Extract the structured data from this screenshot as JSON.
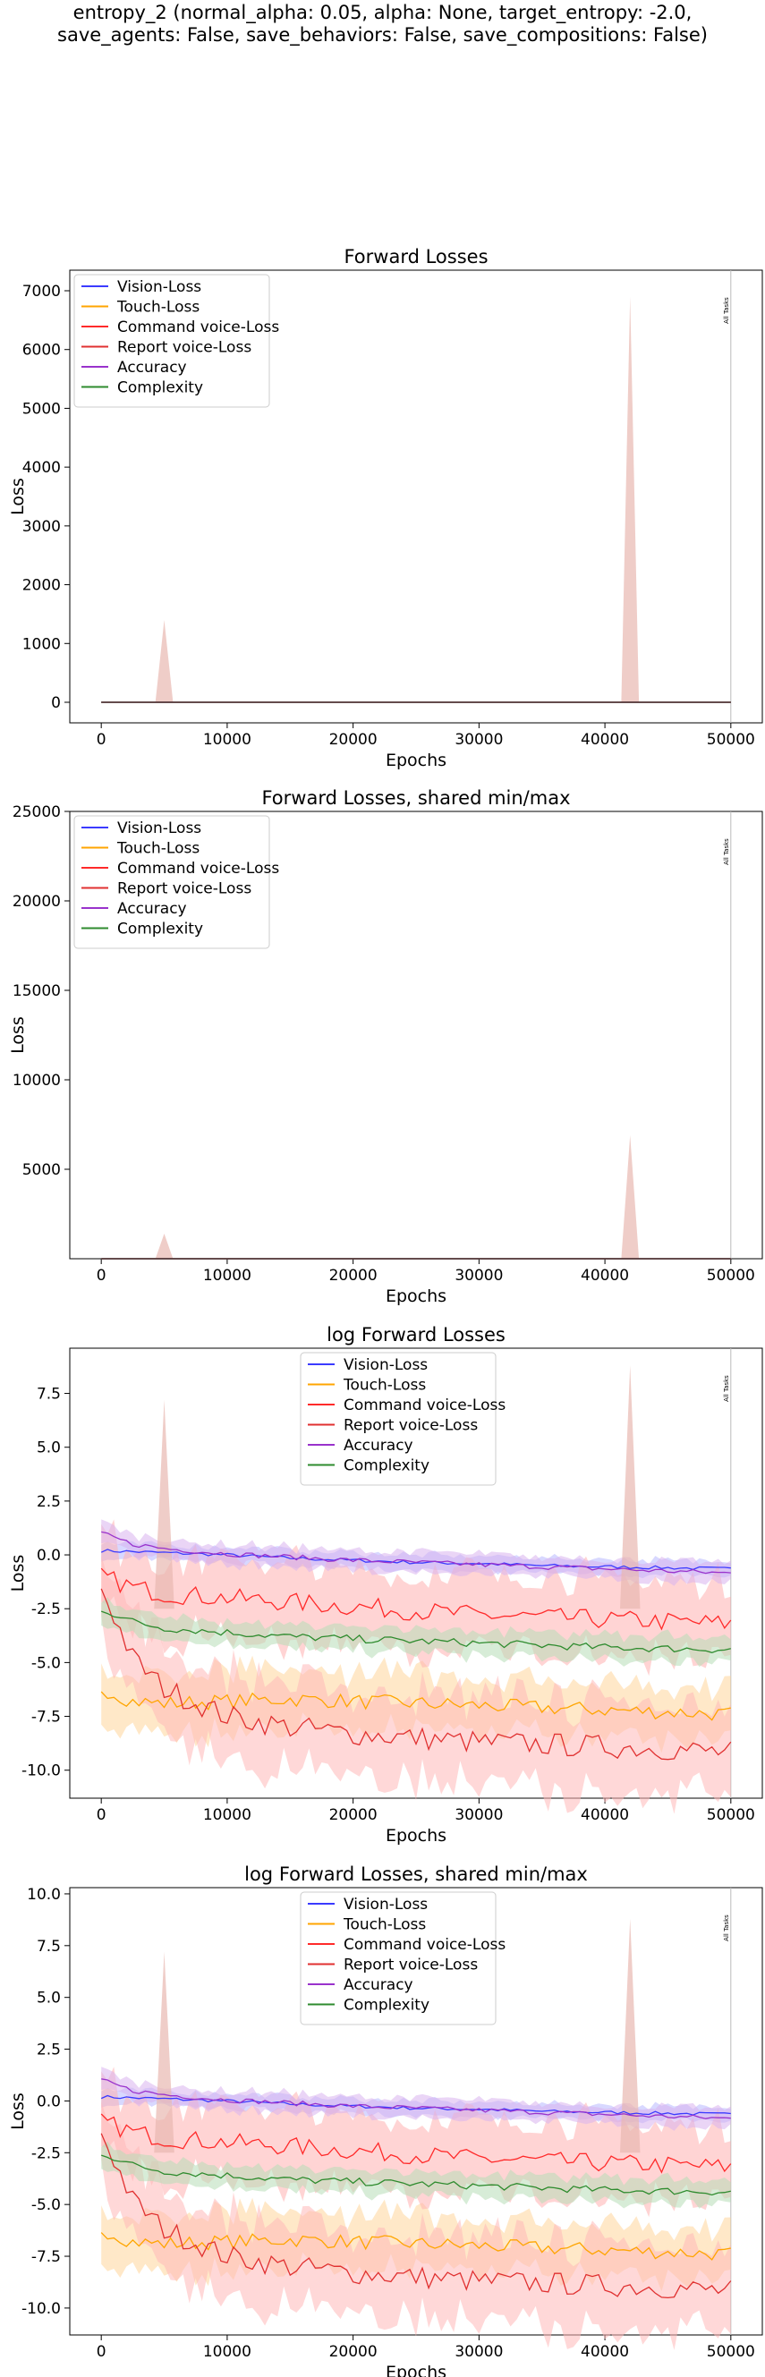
{
  "suptitle_line1": "entropy_2 (normal_alpha: 0.05, alpha: None, target_entropy: -2.0,",
  "suptitle_line2": "save_agents: False, save_behaviors: False, save_compositions: False)",
  "colors": {
    "Vision-Loss": "#3b3bff",
    "Touch-Loss": "#ffa500",
    "Command voice-Loss": "#ff2a2a",
    "Report voice-Loss": "#e03030",
    "Accuracy": "#9932cc",
    "Complexity": "#2e8b2e"
  },
  "chart_data": [
    {
      "type": "line",
      "title": "Forward Losses",
      "xlabel": "Epochs",
      "ylabel": "Loss",
      "xlim": [
        -2500,
        52500
      ],
      "ylim": [
        -350,
        7350
      ],
      "xticks": [
        "0",
        "10000",
        "20000",
        "30000",
        "40000",
        "50000"
      ],
      "yticks": [
        "0",
        "1000",
        "2000",
        "3000",
        "4000",
        "5000",
        "6000",
        "7000"
      ],
      "legend_position": "upper-left",
      "annotation": "All Tasks",
      "series": [
        {
          "name": "Vision-Loss",
          "values_summary": "~0 across epochs"
        },
        {
          "name": "Touch-Loss",
          "values_summary": "~0 across epochs"
        },
        {
          "name": "Command voice-Loss",
          "values_summary": "~0 across epochs"
        },
        {
          "name": "Report voice-Loss",
          "values_summary": "~0, band spikes to ~1400 at 5000 and ~6900 at 42000"
        },
        {
          "name": "Accuracy",
          "values_summary": "~0 across epochs"
        },
        {
          "name": "Complexity",
          "values_summary": "~0 across epochs"
        }
      ]
    },
    {
      "type": "line",
      "title": "Forward Losses, shared min/max",
      "xlabel": "Epochs",
      "ylabel": "Loss",
      "xlim": [
        -2500,
        52500
      ],
      "ylim": [
        0,
        25000
      ],
      "xticks": [
        "0",
        "10000",
        "20000",
        "30000",
        "40000",
        "50000"
      ],
      "yticks": [
        "5000",
        "10000",
        "15000",
        "20000",
        "25000"
      ],
      "legend_position": "upper-left",
      "annotation": "All Tasks"
    },
    {
      "type": "line",
      "title": "log Forward Losses",
      "xlabel": "Epochs",
      "ylabel": "Loss",
      "xlim": [
        -2500,
        52500
      ],
      "ylim": [
        -11.3,
        9.6
      ],
      "xticks": [
        "0",
        "10000",
        "20000",
        "30000",
        "40000",
        "50000"
      ],
      "yticks": [
        "-10.0",
        "-7.5",
        "-5.0",
        "-2.5",
        "0.0",
        "2.5",
        "5.0",
        "7.5"
      ],
      "legend_position": "upper-center",
      "annotation": "All Tasks",
      "x": [
        0,
        2500,
        5000,
        10000,
        15000,
        20000,
        25000,
        30000,
        35000,
        40000,
        45000,
        50000
      ],
      "series": [
        {
          "name": "Vision-Loss",
          "values": [
            0.2,
            0.15,
            0.1,
            0.0,
            -0.15,
            -0.25,
            -0.35,
            -0.4,
            -0.5,
            -0.55,
            -0.6,
            -0.65
          ]
        },
        {
          "name": "Touch-Loss",
          "values": [
            -6.2,
            -6.8,
            -6.9,
            -6.8,
            -6.7,
            -6.8,
            -6.9,
            -7.0,
            -7.1,
            -7.2,
            -7.3,
            -7.4
          ]
        },
        {
          "name": "Command voice-Loss",
          "values": [
            -1.0,
            -1.5,
            -1.8,
            -2.0,
            -2.2,
            -2.4,
            -2.6,
            -2.8,
            -2.9,
            -3.0,
            -3.1,
            -3.2
          ]
        },
        {
          "name": "Report voice-Loss",
          "values": [
            -1.5,
            -4.8,
            -6.2,
            -7.5,
            -8.0,
            -8.3,
            -8.5,
            -8.7,
            -8.8,
            -8.9,
            -9.0,
            -9.2
          ]
        },
        {
          "name": "Accuracy",
          "values": [
            1.0,
            0.5,
            0.3,
            0.05,
            -0.1,
            -0.25,
            -0.35,
            -0.45,
            -0.55,
            -0.65,
            -0.75,
            -0.85
          ]
        },
        {
          "name": "Complexity",
          "values": [
            -2.5,
            -3.1,
            -3.4,
            -3.6,
            -3.8,
            -3.9,
            -4.0,
            -4.1,
            -4.2,
            -4.3,
            -4.35,
            -4.4
          ]
        }
      ]
    },
    {
      "type": "line",
      "title": "log Forward Losses, shared min/max",
      "xlabel": "Epochs",
      "ylabel": "Loss",
      "xlim": [
        -2500,
        52500
      ],
      "ylim": [
        -11.3,
        10.3
      ],
      "xticks": [
        "0",
        "10000",
        "20000",
        "30000",
        "40000",
        "50000"
      ],
      "yticks": [
        "-10.0",
        "-7.5",
        "-5.0",
        "-2.5",
        "0.0",
        "2.5",
        "5.0",
        "7.5",
        "10.0"
      ],
      "legend_position": "upper-center",
      "annotation": "All Tasks"
    }
  ]
}
